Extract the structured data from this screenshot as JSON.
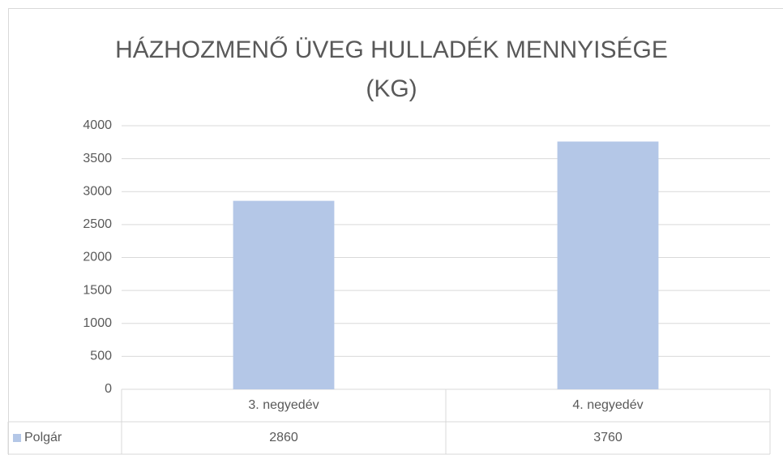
{
  "chart_data": {
    "type": "bar",
    "title": "HÁZHOZMENŐ ÜVEG HULLADÉK MENNYISÉGE (KG)",
    "categories": [
      "3. negyedév",
      "4. negyedév"
    ],
    "series": [
      {
        "name": "Polgár",
        "color": "#b4c7e7",
        "values": [
          2860,
          3760
        ]
      }
    ],
    "ylim": [
      0,
      4000
    ],
    "yticks": [
      0,
      500,
      1000,
      1500,
      2000,
      2500,
      3000,
      3500,
      4000
    ],
    "grid": true,
    "data_table": true
  }
}
